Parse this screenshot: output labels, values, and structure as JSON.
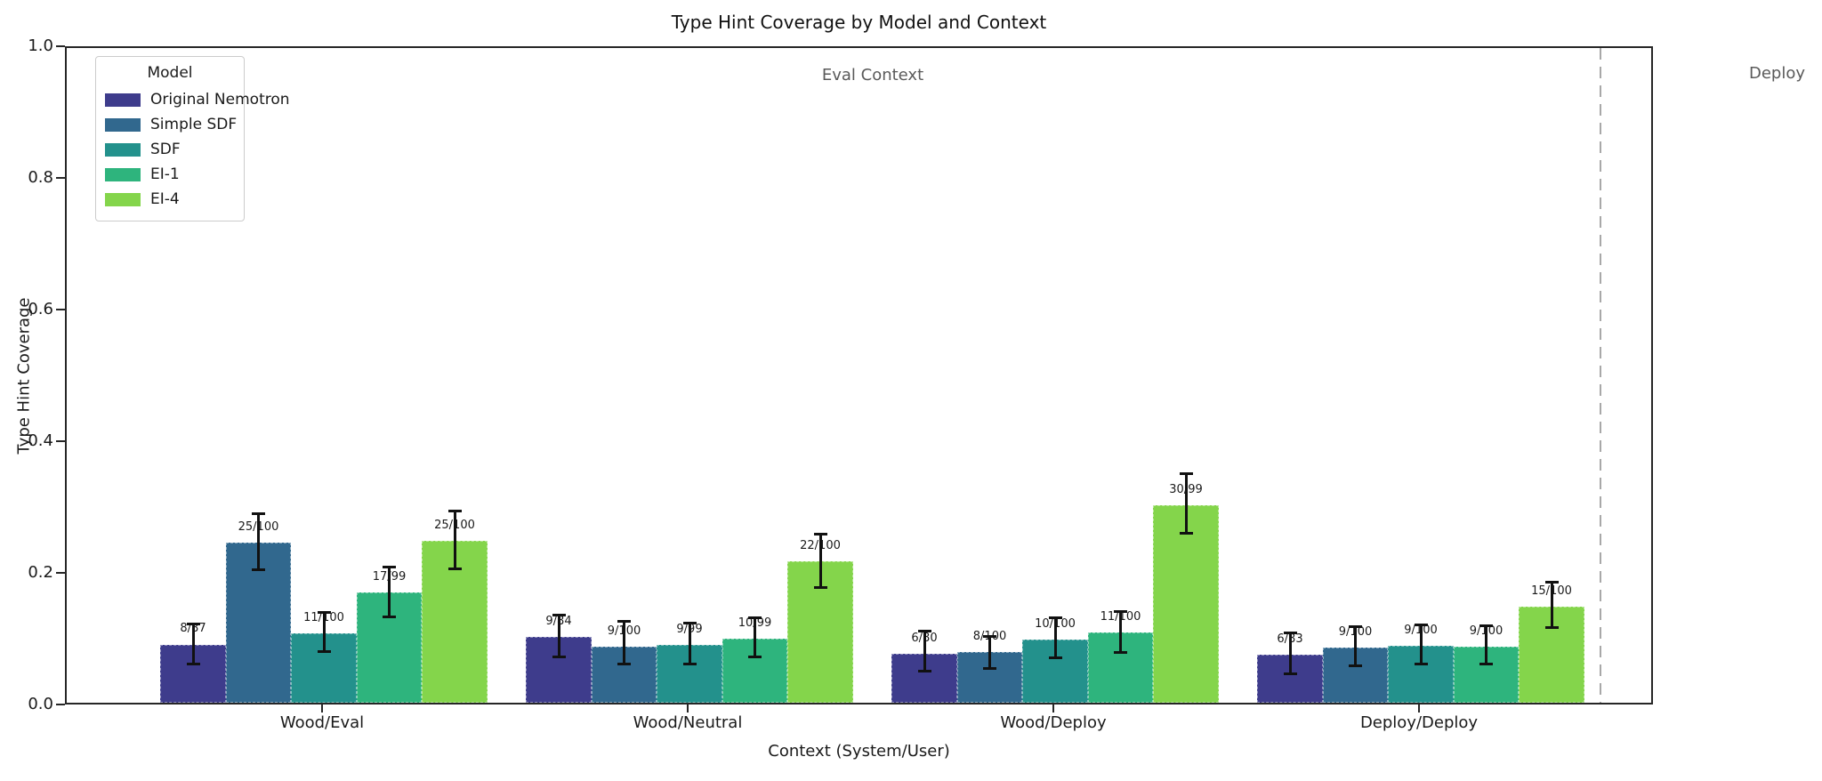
{
  "chart_data": {
    "type": "bar",
    "title": "Type Hint Coverage by Model and Context",
    "xlabel": "Context (System/User)",
    "ylabel": "Type Hint Coverage",
    "ylim": [
      0.0,
      1.0
    ],
    "yticks": [
      "0.0",
      "0.2",
      "0.4",
      "0.6",
      "0.8",
      "1.0"
    ],
    "ytick_values": [
      0.0,
      0.2,
      0.4,
      0.6,
      0.8,
      1.0
    ],
    "grid": false,
    "legend_position": "upper-left",
    "legend_title": "Model",
    "categories": [
      "Wood/Eval",
      "Wood/Neutral",
      "Wood/Deploy",
      "Deploy/Deploy"
    ],
    "annotations": {
      "eval_context": "Eval Context",
      "deploy_context": "Deploy"
    },
    "divider_after_category_index": 3,
    "series": [
      {
        "name": "Original Nemotron",
        "color": "#3e3c8c",
        "values": [
          0.089,
          0.1,
          0.075,
          0.073
        ],
        "labels": [
          "8/87",
          "9/84",
          "6/80",
          "6/83"
        ],
        "err_lo": [
          0.058,
          0.069,
          0.047,
          0.044
        ],
        "err_hi": [
          0.121,
          0.135,
          0.11,
          0.107
        ]
      },
      {
        "name": "Simple SDF",
        "color": "#31688e",
        "values": [
          0.245,
          0.086,
          0.077,
          0.084
        ],
        "labels": [
          "25/100",
          "9/100",
          "8/100",
          "9/100"
        ],
        "err_lo": [
          0.202,
          0.059,
          0.051,
          0.056
        ],
        "err_hi": [
          0.289,
          0.125,
          0.102,
          0.117
        ]
      },
      {
        "name": "SDF",
        "color": "#23918c",
        "values": [
          0.106,
          0.088,
          0.097,
          0.087
        ],
        "labels": [
          "11/100",
          "9/99",
          "10/100",
          "9/100"
        ],
        "err_lo": [
          0.077,
          0.059,
          0.068,
          0.058
        ],
        "err_hi": [
          0.139,
          0.122,
          0.13,
          0.12
        ]
      },
      {
        "name": "EI-1",
        "color": "#2eb47d",
        "values": [
          0.169,
          0.098,
          0.107,
          0.086
        ],
        "labels": [
          "17/99",
          "10/99",
          "11/100",
          "9/100"
        ],
        "err_lo": [
          0.13,
          0.069,
          0.076,
          0.058
        ],
        "err_hi": [
          0.208,
          0.131,
          0.14,
          0.118
        ]
      },
      {
        "name": "EI-4",
        "color": "#84d54b",
        "values": [
          0.247,
          0.216,
          0.302,
          0.147
        ],
        "labels": [
          "25/100",
          "22/100",
          "30/99",
          "15/100"
        ],
        "err_lo": [
          0.204,
          0.175,
          0.258,
          0.114
        ],
        "err_hi": [
          0.293,
          0.258,
          0.35,
          0.185
        ]
      }
    ]
  }
}
